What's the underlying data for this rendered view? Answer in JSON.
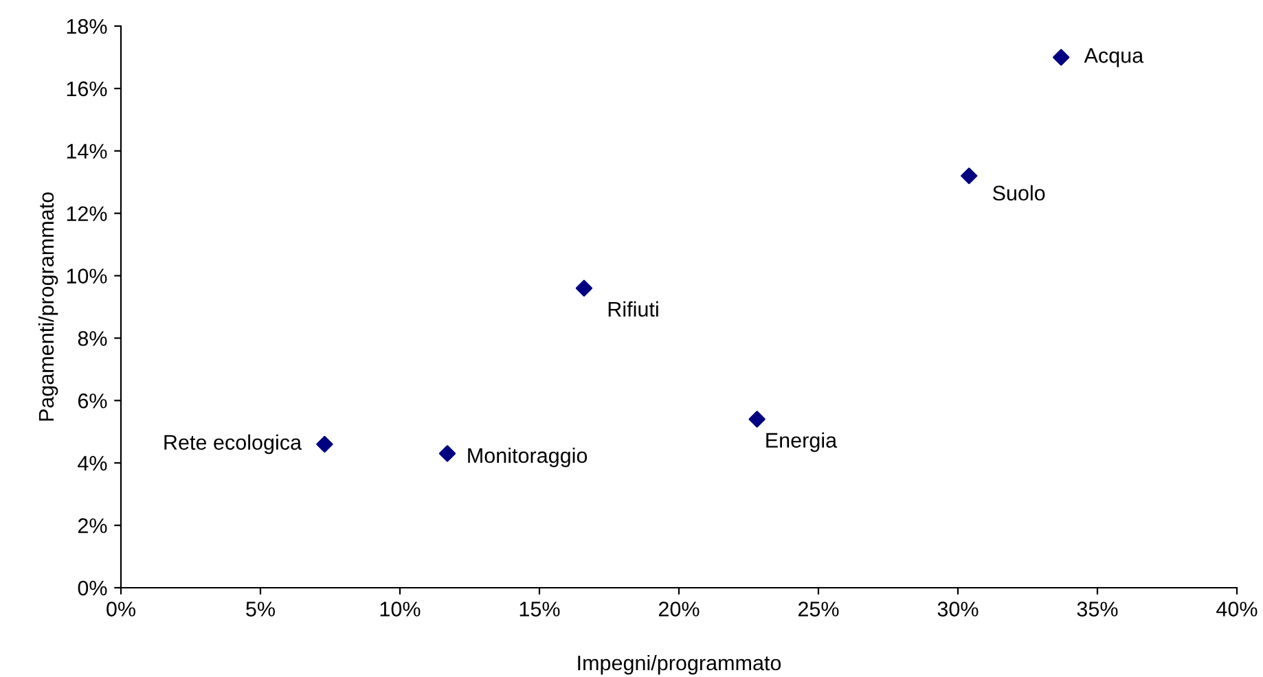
{
  "chart_data": {
    "type": "scatter",
    "xlabel": "Impegni/programmato",
    "ylabel": "Pagamenti/programmato",
    "x": [
      33.7,
      30.4,
      16.6,
      22.8,
      7.3,
      11.7
    ],
    "series": [
      {
        "color": "#000080",
        "values": [
          17.0,
          13.2,
          9.6,
          5.4,
          4.6,
          4.3
        ]
      }
    ],
    "marker": "diamond",
    "grid": false,
    "legend": false,
    "xlim": [
      0,
      40
    ],
    "ylim": [
      0,
      18
    ],
    "xticks": [
      {
        "value": 0,
        "label": "0%"
      },
      {
        "value": 5,
        "label": "5%"
      },
      {
        "value": 10,
        "label": "10%"
      },
      {
        "value": 15,
        "label": "15%"
      },
      {
        "value": 20,
        "label": "20%"
      },
      {
        "value": 25,
        "label": "25%"
      },
      {
        "value": 30,
        "label": "30%"
      },
      {
        "value": 35,
        "label": "35%"
      },
      {
        "value": 40,
        "label": "40%"
      }
    ],
    "yticks": [
      {
        "value": 0,
        "label": "0%"
      },
      {
        "value": 2,
        "label": "2%"
      },
      {
        "value": 4,
        "label": "4%"
      },
      {
        "value": 6,
        "label": "6%"
      },
      {
        "value": 8,
        "label": "8%"
      },
      {
        "value": 10,
        "label": "10%"
      },
      {
        "value": 12,
        "label": "12%"
      },
      {
        "value": 14,
        "label": "14%"
      },
      {
        "value": 16,
        "label": "16%"
      },
      {
        "value": 18,
        "label": "18%"
      }
    ],
    "annotations": [
      {
        "text": "Acqua",
        "x": 33.7,
        "y": 17.0
      },
      {
        "text": "Suolo",
        "x": 30.4,
        "y": 13.2
      },
      {
        "text": "Rifiuti",
        "x": 16.6,
        "y": 9.6
      },
      {
        "text": "Energia",
        "x": 22.8,
        "y": 5.4
      },
      {
        "text": "Rete ecologica",
        "x": 7.3,
        "y": 4.6
      },
      {
        "text": "Monitoraggio",
        "x": 11.7,
        "y": 4.3
      }
    ]
  }
}
